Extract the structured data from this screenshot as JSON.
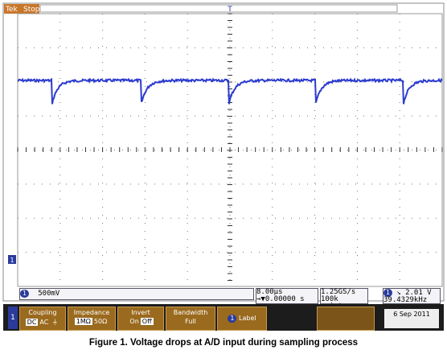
{
  "header": {
    "brand": "Tek",
    "status": "Stop"
  },
  "markers": {
    "trigger": "T",
    "channel": "1"
  },
  "status_bar": {
    "channel": "1",
    "scale": "500mV",
    "timebase": "8.00µs",
    "delay": "→▼0.00000 s",
    "sample_rate": "1.25GS/s",
    "record_length": "100k points",
    "trigger_channel": "1",
    "trigger_slope": "↘",
    "trigger_level": "2.01 V",
    "frequency": "39.4329kHz"
  },
  "menu": {
    "channel": "1",
    "coupling": {
      "label": "Coupling",
      "options": [
        "DC",
        "AC",
        "⏚"
      ]
    },
    "impedance": {
      "label": "Impedance",
      "options": [
        "1MΩ",
        "50Ω"
      ]
    },
    "invert": {
      "label": "Invert",
      "options": [
        "On",
        "Off"
      ]
    },
    "bandwidth": {
      "label": "Bandwidth",
      "options": [
        "Full"
      ]
    },
    "label_button": {
      "channel": "1",
      "text": "Label"
    },
    "date": "6 Sep 2011"
  },
  "caption": "Figure 1. Voltage drops at A/D input during sampling process"
}
